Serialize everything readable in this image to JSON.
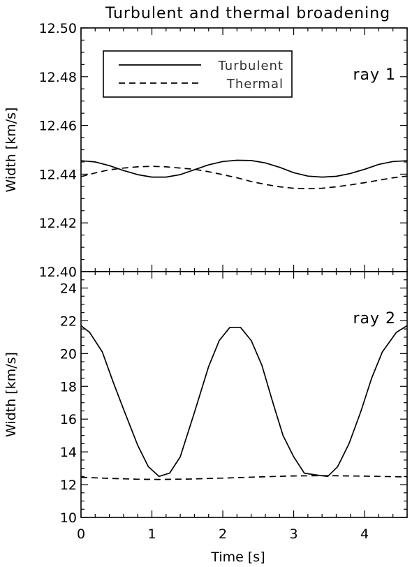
{
  "chart_data": {
    "title": "Turbulent and thermal broadening",
    "xlabel": "Time [s]",
    "xlim": [
      0,
      4.6
    ],
    "x_ticks": [
      0,
      1,
      2,
      3,
      4
    ],
    "x_tick_labels": [
      "0",
      "1",
      "2",
      "3",
      "4"
    ],
    "panels": [
      {
        "type": "line",
        "annotation": "ray 1",
        "ylabel": "Width [km/s]",
        "ylim": [
          12.4,
          12.5
        ],
        "y_ticks": [
          12.4,
          12.42,
          12.44,
          12.46,
          12.48,
          12.5
        ],
        "y_tick_labels": [
          "12.40",
          "12.42",
          "12.44",
          "12.46",
          "12.48",
          "12.50"
        ],
        "legend": {
          "placement": "top-left",
          "entries": [
            "Turbulent",
            "Thermal"
          ]
        },
        "series": [
          {
            "name": "Turbulent",
            "style": "solid",
            "x": [
              0,
              0.2,
              0.4,
              0.6,
              0.8,
              1.0,
              1.2,
              1.4,
              1.6,
              1.8,
              2.0,
              2.2,
              2.4,
              2.6,
              2.8,
              3.0,
              3.2,
              3.4,
              3.6,
              3.8,
              4.0,
              4.2,
              4.4,
              4.6
            ],
            "values": [
              12.4455,
              12.445,
              12.4435,
              12.4415,
              12.4398,
              12.4388,
              12.4388,
              12.4398,
              12.4418,
              12.4438,
              12.4452,
              12.4457,
              12.4456,
              12.4446,
              12.4428,
              12.4406,
              12.4392,
              12.4388,
              12.4391,
              12.4403,
              12.442,
              12.444,
              12.4452,
              12.4455
            ]
          },
          {
            "name": "Thermal",
            "style": "dashed",
            "x": [
              0,
              0.2,
              0.4,
              0.6,
              0.8,
              1.0,
              1.2,
              1.4,
              1.6,
              1.8,
              2.0,
              2.2,
              2.4,
              2.6,
              2.8,
              3.0,
              3.2,
              3.4,
              3.6,
              3.8,
              4.0,
              4.2,
              4.4,
              4.6
            ],
            "values": [
              12.439,
              12.4405,
              12.4418,
              12.4425,
              12.443,
              12.4432,
              12.443,
              12.4425,
              12.442,
              12.441,
              12.4398,
              12.4385,
              12.437,
              12.4358,
              12.4348,
              12.4342,
              12.434,
              12.4342,
              12.4348,
              12.4356,
              12.4365,
              12.4375,
              12.4385,
              12.4392
            ]
          }
        ]
      },
      {
        "type": "line",
        "annotation": "ray 2",
        "ylabel": "Width [km/s]",
        "ylim": [
          10,
          25
        ],
        "y_ticks": [
          10,
          12,
          14,
          16,
          18,
          20,
          22,
          24
        ],
        "y_tick_labels": [
          "10",
          "12",
          "14",
          "16",
          "18",
          "20",
          "22",
          "24"
        ],
        "series": [
          {
            "name": "Turbulent",
            "style": "solid",
            "x": [
              0,
              0.12,
              0.3,
              0.45,
              0.6,
              0.8,
              0.95,
              1.1,
              1.25,
              1.4,
              1.6,
              1.8,
              1.95,
              2.1,
              2.25,
              2.4,
              2.55,
              2.7,
              2.85,
              3.0,
              3.15,
              3.3,
              3.48,
              3.62,
              3.78,
              3.95,
              4.1,
              4.25,
              4.45,
              4.6
            ],
            "values": [
              21.7,
              21.3,
              20.1,
              18.3,
              16.6,
              14.4,
              13.1,
              12.5,
              12.7,
              13.7,
              16.4,
              19.2,
              20.8,
              21.6,
              21.6,
              20.8,
              19.3,
              17.1,
              15.0,
              13.7,
              12.7,
              12.6,
              12.5,
              13.1,
              14.5,
              16.5,
              18.5,
              20.1,
              21.3,
              21.7
            ]
          },
          {
            "name": "Thermal",
            "style": "dashed",
            "x": [
              0,
              0.4,
              0.8,
              1.1,
              1.5,
              2.0,
              2.5,
              3.0,
              3.5,
              4.0,
              4.6
            ],
            "values": [
              12.45,
              12.38,
              12.33,
              12.32,
              12.34,
              12.4,
              12.47,
              12.53,
              12.55,
              12.52,
              12.47
            ]
          }
        ]
      }
    ]
  }
}
